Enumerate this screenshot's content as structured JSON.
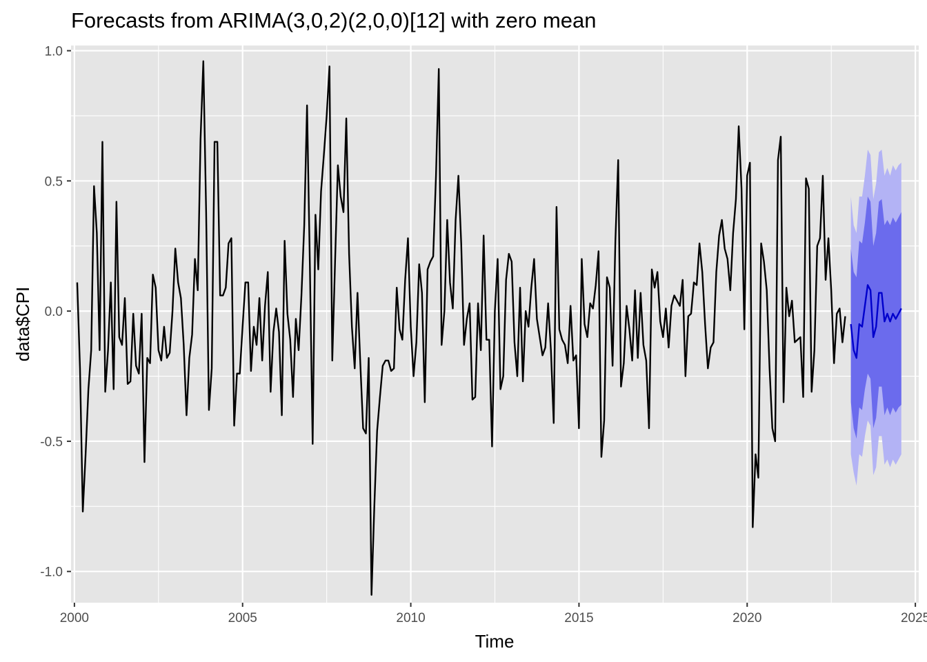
{
  "chart_data": {
    "type": "line",
    "title": "Forecasts from ARIMA(3,0,2)(2,0,0)[12] with zero mean",
    "xlabel": "Time",
    "ylabel": "data$CPI",
    "xlim": [
      1999.9,
      2025.1
    ],
    "ylim": [
      -1.12,
      1.02
    ],
    "x_ticks": [
      2000,
      2005,
      2010,
      2015,
      2020,
      2025
    ],
    "x_tick_labels": [
      "2000",
      "2005",
      "2010",
      "2015",
      "2020",
      "2025"
    ],
    "y_ticks": [
      -1.0,
      -0.5,
      0.0,
      0.5,
      1.0
    ],
    "y_tick_labels": [
      "-1.0",
      "-0.5",
      "0.0",
      "0.5",
      "1.0"
    ],
    "grid": true,
    "colors": {
      "panel": "#e5e5e5",
      "grid": "#ffffff",
      "history_line": "#000000",
      "forecast_line": "#0000cc",
      "band_95": "#b3b3f5",
      "band_80": "#6b6bed"
    },
    "series": [
      {
        "start": 2000.083,
        "step": 0.08333,
        "values": [
          0.11,
          -0.22,
          -0.77,
          -0.55,
          -0.3,
          -0.15,
          0.48,
          0.3,
          -0.15,
          0.65,
          -0.31,
          -0.15,
          0.11,
          -0.3,
          0.42,
          -0.1,
          -0.13,
          0.05,
          -0.28,
          -0.27,
          -0.01,
          -0.21,
          -0.24,
          -0.01,
          -0.58,
          -0.18,
          -0.2,
          0.14,
          0.09,
          -0.15,
          -0.19,
          -0.06,
          -0.18,
          -0.16,
          0.0,
          0.24,
          0.11,
          0.05,
          -0.13,
          -0.4,
          -0.18,
          -0.09,
          0.2,
          0.08,
          0.66,
          0.96,
          0.38,
          -0.38,
          -0.22,
          0.65,
          0.65,
          0.06,
          0.06,
          0.09,
          0.26,
          0.28,
          -0.44,
          -0.24,
          -0.24,
          -0.06,
          0.11,
          0.11,
          -0.23,
          -0.06,
          -0.13,
          0.05,
          -0.19,
          0.02,
          0.15,
          -0.31,
          -0.08,
          0.01,
          -0.08,
          -0.4,
          0.27,
          -0.01,
          -0.11,
          -0.33,
          -0.03,
          -0.15,
          0.06,
          0.33,
          0.79,
          0.18,
          -0.51,
          0.37,
          0.16,
          0.46,
          0.6,
          0.75,
          0.94,
          -0.19,
          0.19,
          0.56,
          0.44,
          0.38,
          0.74,
          0.22,
          -0.06,
          -0.22,
          0.07,
          -0.2,
          -0.45,
          -0.47,
          -0.18,
          -1.09,
          -0.75,
          -0.46,
          -0.33,
          -0.21,
          -0.19,
          -0.19,
          -0.23,
          -0.22,
          0.09,
          -0.07,
          -0.11,
          0.12,
          0.28,
          -0.06,
          -0.25,
          -0.12,
          0.18,
          0.07,
          -0.35,
          0.16,
          0.19,
          0.21,
          0.52,
          0.93,
          -0.13,
          0.0,
          0.35,
          0.11,
          0.01,
          0.35,
          0.52,
          0.26,
          -0.13,
          -0.03,
          0.03,
          -0.34,
          -0.33,
          0.03,
          -0.15,
          0.29,
          -0.11,
          -0.11,
          -0.52,
          0.0,
          0.2,
          -0.3,
          -0.25,
          0.12,
          0.22,
          0.19,
          -0.12,
          -0.25,
          0.09,
          -0.27,
          0.0,
          -0.06,
          0.09,
          0.2,
          -0.03,
          -0.1,
          -0.17,
          -0.14,
          0.03,
          -0.15,
          -0.43,
          0.4,
          -0.07,
          -0.11,
          -0.13,
          -0.2,
          0.02,
          -0.19,
          -0.17,
          -0.45,
          0.2,
          -0.05,
          -0.1,
          0.03,
          0.01,
          0.1,
          0.23,
          -0.56,
          -0.42,
          0.13,
          0.09,
          -0.21,
          0.27,
          0.58,
          -0.29,
          -0.2,
          0.02,
          -0.07,
          -0.19,
          0.08,
          -0.18,
          0.07,
          -0.13,
          -0.19,
          -0.45,
          0.16,
          0.09,
          0.15,
          -0.04,
          -0.1,
          0.01,
          -0.14,
          0.02,
          0.06,
          0.04,
          0.02,
          0.12,
          -0.25,
          -0.02,
          -0.01,
          0.11,
          0.1,
          0.26,
          0.15,
          -0.05,
          -0.22,
          -0.14,
          -0.12,
          0.15,
          0.29,
          0.35,
          0.24,
          0.2,
          0.08,
          0.3,
          0.43,
          0.71,
          0.47,
          -0.07,
          0.52,
          0.57,
          -0.83,
          -0.55,
          -0.64,
          0.26,
          0.19,
          0.08,
          -0.22,
          -0.45,
          -0.5,
          0.58,
          0.67,
          -0.35,
          0.09,
          -0.02,
          0.04,
          -0.12,
          -0.11,
          -0.1,
          -0.33,
          0.51,
          0.47,
          -0.31,
          -0.15,
          0.25,
          0.28,
          0.52,
          0.12,
          0.28,
          0.08,
          -0.2,
          -0.01,
          0.01,
          -0.12,
          -0.02
        ]
      },
      {
        "start": 2023.083,
        "step": 0.08333,
        "values": [
          -0.05,
          -0.15,
          -0.18,
          -0.05,
          -0.06,
          0.02,
          0.1,
          0.08,
          -0.1,
          -0.06,
          0.07,
          0.07,
          -0.04,
          -0.01,
          -0.04,
          -0.01,
          -0.03,
          -0.01,
          0.01
        ],
        "lo80": [
          -0.35,
          -0.45,
          -0.49,
          -0.37,
          -0.38,
          -0.3,
          -0.24,
          -0.26,
          -0.45,
          -0.41,
          -0.29,
          -0.29,
          -0.4,
          -0.37,
          -0.4,
          -0.37,
          -0.39,
          -0.37,
          -0.36
        ],
        "hi80": [
          0.24,
          0.15,
          0.13,
          0.27,
          0.26,
          0.34,
          0.44,
          0.42,
          0.25,
          0.3,
          0.42,
          0.43,
          0.33,
          0.35,
          0.33,
          0.36,
          0.34,
          0.36,
          0.38
        ],
        "lo95": [
          -0.55,
          -0.62,
          -0.67,
          -0.55,
          -0.56,
          -0.48,
          -0.42,
          -0.44,
          -0.63,
          -0.6,
          -0.48,
          -0.48,
          -0.59,
          -0.57,
          -0.6,
          -0.57,
          -0.59,
          -0.57,
          -0.55
        ],
        "hi95": [
          0.44,
          0.33,
          0.3,
          0.44,
          0.44,
          0.52,
          0.62,
          0.6,
          0.43,
          0.49,
          0.61,
          0.62,
          0.52,
          0.55,
          0.52,
          0.56,
          0.54,
          0.56,
          0.57
        ]
      }
    ]
  }
}
